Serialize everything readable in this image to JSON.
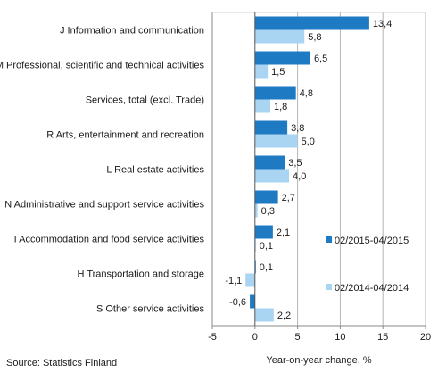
{
  "chart_data": {
    "type": "bar",
    "orientation": "horizontal",
    "categories": [
      "J Information and communication",
      "M Professional, scientific and technical activities",
      "Services, total (excl. Trade)",
      "R Arts, entertainment and recreation",
      "L Real estate activities",
      "N Administrative and support service activities",
      "I Accommodation and food service activities",
      "H Transportation and storage",
      "S Other service activities"
    ],
    "series": [
      {
        "name": "02/2015-04/2015",
        "color": "#1f7ac4",
        "values": [
          13.4,
          6.5,
          4.8,
          3.8,
          3.5,
          2.7,
          2.1,
          0.1,
          -0.6
        ],
        "labels": [
          "13,4",
          "6,5",
          "4,8",
          "3,8",
          "3,5",
          "2,7",
          "2,1",
          "0,1",
          "-0,6"
        ]
      },
      {
        "name": "02/2014-04/2014",
        "color": "#a9d4f2",
        "values": [
          5.8,
          1.5,
          1.8,
          5.0,
          4.0,
          0.3,
          0.1,
          -1.1,
          2.2
        ],
        "labels": [
          "5,8",
          "1,5",
          "1,8",
          "5,0",
          "4,0",
          "0,3",
          "0,1",
          "-1,1",
          "2,2"
        ]
      }
    ],
    "xlim": [
      -5,
      20
    ],
    "xticks": [
      -5,
      0,
      5,
      10,
      15,
      20
    ],
    "xlabel": "Year-on-year change, %",
    "ylabel": "",
    "grid": "vertical",
    "legend_position": "right"
  },
  "source": "Source:  Statistics Finland"
}
